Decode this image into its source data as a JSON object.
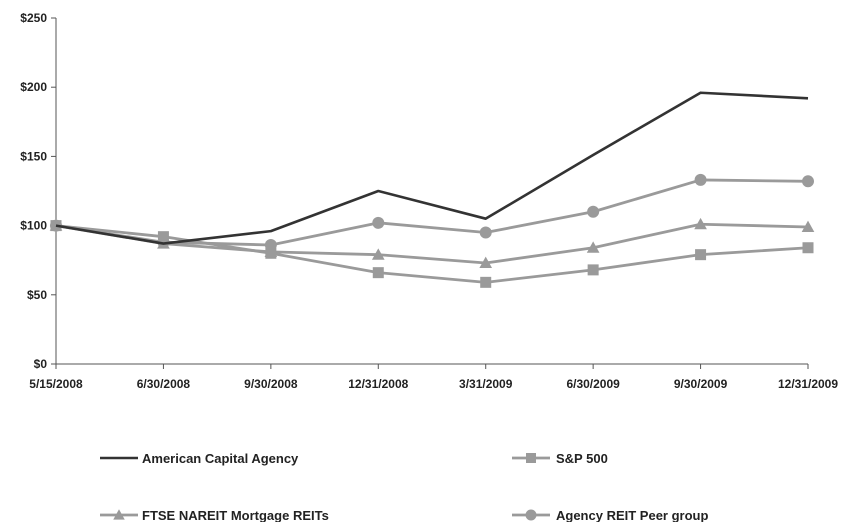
{
  "chart_data": {
    "type": "line",
    "title": "",
    "xlabel": "",
    "ylabel": "",
    "categories": [
      "5/15/2008",
      "6/30/2008",
      "9/30/2008",
      "12/31/2008",
      "3/31/2009",
      "6/30/2009",
      "9/30/2009",
      "12/31/2009"
    ],
    "y_ticks": [
      "$0",
      "$50",
      "$100",
      "$150",
      "$200",
      "$250"
    ],
    "y_tick_values": [
      0,
      50,
      100,
      150,
      200,
      250
    ],
    "ylim": [
      0,
      250
    ],
    "grid": false,
    "legend_placement": "bottom",
    "series": [
      {
        "name": "American Capital Agency",
        "values": [
          100,
          87,
          96,
          125,
          105,
          151,
          196,
          192
        ],
        "color": "#333333",
        "marker": "none"
      },
      {
        "name": "S&P 500",
        "values": [
          100,
          92,
          80,
          66,
          59,
          68,
          79,
          84
        ],
        "color": "#9a9a9a",
        "marker": "square"
      },
      {
        "name": "FTSE NAREIT Mortgage REITs",
        "values": [
          100,
          87,
          81,
          79,
          73,
          84,
          101,
          99
        ],
        "color": "#9a9a9a",
        "marker": "triangle"
      },
      {
        "name": "Agency REIT Peer group",
        "values": [
          100,
          88,
          86,
          102,
          95,
          110,
          133,
          132
        ],
        "color": "#9a9a9a",
        "marker": "circle"
      }
    ]
  }
}
